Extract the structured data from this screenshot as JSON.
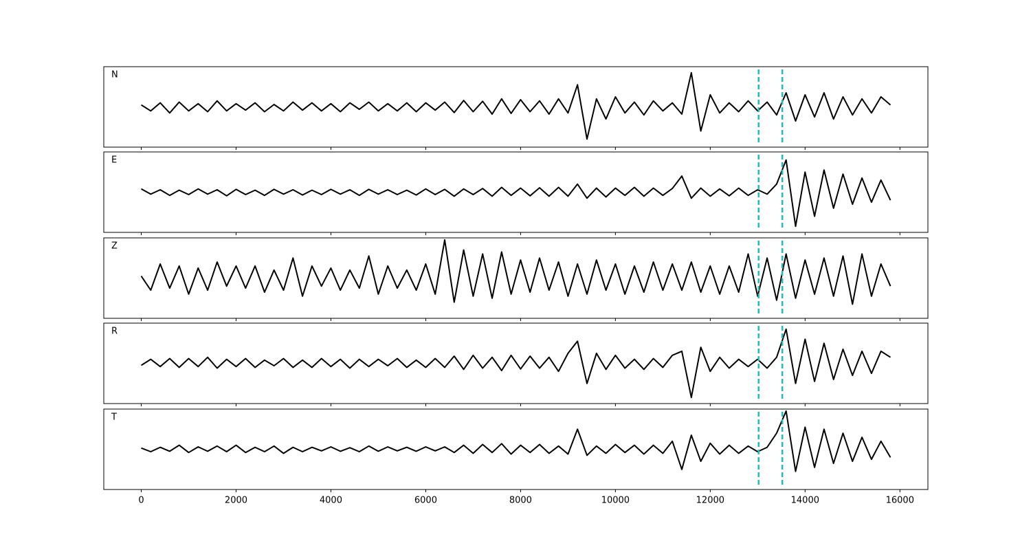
{
  "chart_data": {
    "type": "line",
    "x": [
      0,
      200,
      400,
      600,
      800,
      1000,
      1200,
      1400,
      1600,
      1800,
      2000,
      2200,
      2400,
      2600,
      2800,
      3000,
      3200,
      3400,
      3600,
      3800,
      4000,
      4200,
      4400,
      4600,
      4800,
      5000,
      5200,
      5400,
      5600,
      5800,
      6000,
      6200,
      6400,
      6600,
      6800,
      7000,
      7200,
      7400,
      7600,
      7800,
      8000,
      8200,
      8400,
      8600,
      8800,
      9000,
      9200,
      9400,
      9600,
      9800,
      10000,
      10200,
      10400,
      10600,
      10800,
      11000,
      11200,
      11400,
      11600,
      11800,
      12000,
      12200,
      12400,
      12600,
      12800,
      13000,
      13200,
      13400,
      13600,
      13800,
      14000,
      14200,
      14400,
      14600,
      14800,
      15000,
      15200,
      15400,
      15600,
      15800
    ],
    "xlim": [
      -790,
      16590
    ],
    "xticks": [
      0,
      2000,
      4000,
      6000,
      8000,
      10000,
      12000,
      14000,
      16000
    ],
    "ylim": [
      -1,
      1
    ],
    "color": "#000000",
    "markers": {
      "values": [
        13020,
        13520
      ],
      "color": "#1fbfb8"
    },
    "series": [
      {
        "name": "N",
        "values": [
          0.05,
          -0.1,
          0.1,
          -0.15,
          0.12,
          -0.1,
          0.08,
          -0.12,
          0.15,
          -0.1,
          0.08,
          -0.08,
          0.1,
          -0.12,
          0.06,
          -0.1,
          0.12,
          -0.08,
          0.1,
          -0.1,
          0.08,
          -0.12,
          0.1,
          -0.06,
          0.12,
          -0.1,
          0.08,
          -0.1,
          0.1,
          -0.12,
          0.1,
          -0.08,
          0.12,
          -0.14,
          0.16,
          -0.12,
          0.14,
          -0.18,
          0.2,
          -0.16,
          0.18,
          -0.12,
          0.15,
          -0.18,
          0.2,
          -0.15,
          0.55,
          -0.8,
          0.2,
          -0.3,
          0.25,
          -0.15,
          0.12,
          -0.2,
          0.15,
          -0.1,
          0.1,
          -0.18,
          0.85,
          -0.6,
          0.3,
          -0.15,
          0.1,
          -0.12,
          0.15,
          -0.1,
          0.12,
          -0.2,
          0.35,
          -0.35,
          0.3,
          -0.25,
          0.35,
          -0.3,
          0.25,
          -0.2,
          0.2,
          -0.15,
          0.25,
          0.05
        ]
      },
      {
        "name": "E",
        "values": [
          0.08,
          -0.05,
          0.06,
          -0.08,
          0.05,
          -0.06,
          0.08,
          -0.05,
          0.06,
          -0.09,
          0.07,
          -0.06,
          0.05,
          -0.08,
          0.07,
          -0.05,
          0.06,
          -0.07,
          0.05,
          -0.06,
          0.07,
          -0.05,
          0.06,
          -0.08,
          0.07,
          -0.05,
          0.06,
          -0.06,
          0.05,
          -0.07,
          0.08,
          -0.06,
          0.07,
          -0.1,
          0.08,
          -0.06,
          0.09,
          -0.1,
          0.12,
          -0.08,
          0.1,
          -0.09,
          0.11,
          -0.1,
          0.12,
          -0.1,
          0.2,
          -0.15,
          0.1,
          -0.12,
          0.1,
          -0.08,
          0.12,
          -0.1,
          0.1,
          -0.08,
          0.09,
          0.4,
          -0.15,
          0.1,
          -0.1,
          0.08,
          -0.09,
          0.1,
          -0.08,
          0.06,
          -0.05,
          0.2,
          0.8,
          -0.85,
          0.5,
          -0.6,
          0.55,
          -0.4,
          0.45,
          -0.3,
          0.35,
          -0.25,
          0.3,
          -0.2
        ]
      },
      {
        "name": "Z",
        "values": [
          0.05,
          -0.3,
          0.35,
          -0.25,
          0.3,
          -0.4,
          0.25,
          -0.3,
          0.4,
          -0.2,
          0.3,
          -0.25,
          0.3,
          -0.35,
          0.2,
          -0.3,
          0.5,
          -0.45,
          0.3,
          -0.2,
          0.25,
          -0.3,
          0.2,
          -0.25,
          0.55,
          -0.4,
          0.3,
          -0.25,
          0.2,
          -0.3,
          0.35,
          -0.4,
          0.95,
          -0.6,
          0.7,
          -0.45,
          0.6,
          -0.5,
          0.65,
          -0.4,
          0.45,
          -0.35,
          0.5,
          -0.3,
          0.4,
          -0.45,
          0.35,
          -0.4,
          0.45,
          -0.3,
          0.35,
          -0.4,
          0.3,
          -0.35,
          0.4,
          -0.3,
          0.35,
          -0.3,
          0.4,
          -0.35,
          0.3,
          -0.4,
          0.3,
          -0.35,
          0.6,
          -0.45,
          0.5,
          -0.55,
          0.6,
          -0.5,
          0.45,
          -0.4,
          0.5,
          -0.45,
          0.55,
          -0.65,
          0.6,
          -0.45,
          0.35,
          -0.2
        ]
      },
      {
        "name": "R",
        "values": [
          -0.05,
          0.1,
          -0.08,
          0.12,
          -0.1,
          0.12,
          -0.08,
          0.15,
          -0.12,
          0.1,
          -0.08,
          0.12,
          -0.1,
          0.08,
          -0.06,
          0.12,
          -0.1,
          0.08,
          -0.1,
          0.12,
          -0.08,
          0.1,
          -0.12,
          0.1,
          -0.08,
          0.1,
          -0.06,
          0.12,
          -0.1,
          0.08,
          -0.1,
          0.12,
          -0.1,
          0.18,
          -0.15,
          0.2,
          -0.12,
          0.15,
          -0.18,
          0.2,
          -0.14,
          0.18,
          -0.12,
          0.15,
          -0.2,
          0.25,
          0.55,
          -0.5,
          0.25,
          -0.15,
          0.2,
          -0.12,
          0.1,
          -0.15,
          0.12,
          -0.1,
          0.2,
          0.3,
          -0.85,
          0.4,
          -0.2,
          0.15,
          -0.12,
          0.1,
          -0.08,
          0.1,
          -0.12,
          0.15,
          0.85,
          -0.5,
          0.6,
          -0.45,
          0.5,
          -0.4,
          0.35,
          -0.3,
          0.3,
          -0.25,
          0.3,
          0.15
        ]
      },
      {
        "name": "T",
        "values": [
          0.03,
          -0.06,
          0.05,
          -0.05,
          0.1,
          -0.08,
          0.06,
          -0.05,
          0.08,
          -0.06,
          0.1,
          -0.08,
          0.05,
          -0.06,
          0.08,
          -0.1,
          0.05,
          -0.06,
          0.05,
          -0.04,
          0.06,
          -0.05,
          0.04,
          -0.06,
          0.08,
          -0.05,
          0.06,
          -0.04,
          0.05,
          -0.05,
          0.06,
          -0.04,
          0.06,
          -0.08,
          0.1,
          -0.1,
          0.12,
          -0.08,
          0.14,
          -0.12,
          0.1,
          -0.08,
          0.12,
          -0.1,
          0.08,
          -0.12,
          0.5,
          -0.15,
          0.08,
          -0.1,
          0.12,
          -0.08,
          0.1,
          -0.12,
          0.1,
          -0.1,
          0.2,
          -0.5,
          0.35,
          -0.3,
          0.15,
          -0.12,
          0.1,
          -0.1,
          0.08,
          -0.06,
          0.05,
          0.4,
          0.95,
          -0.55,
          0.55,
          -0.45,
          0.5,
          -0.35,
          0.4,
          -0.3,
          0.3,
          -0.25,
          0.2,
          -0.2
        ]
      }
    ]
  }
}
